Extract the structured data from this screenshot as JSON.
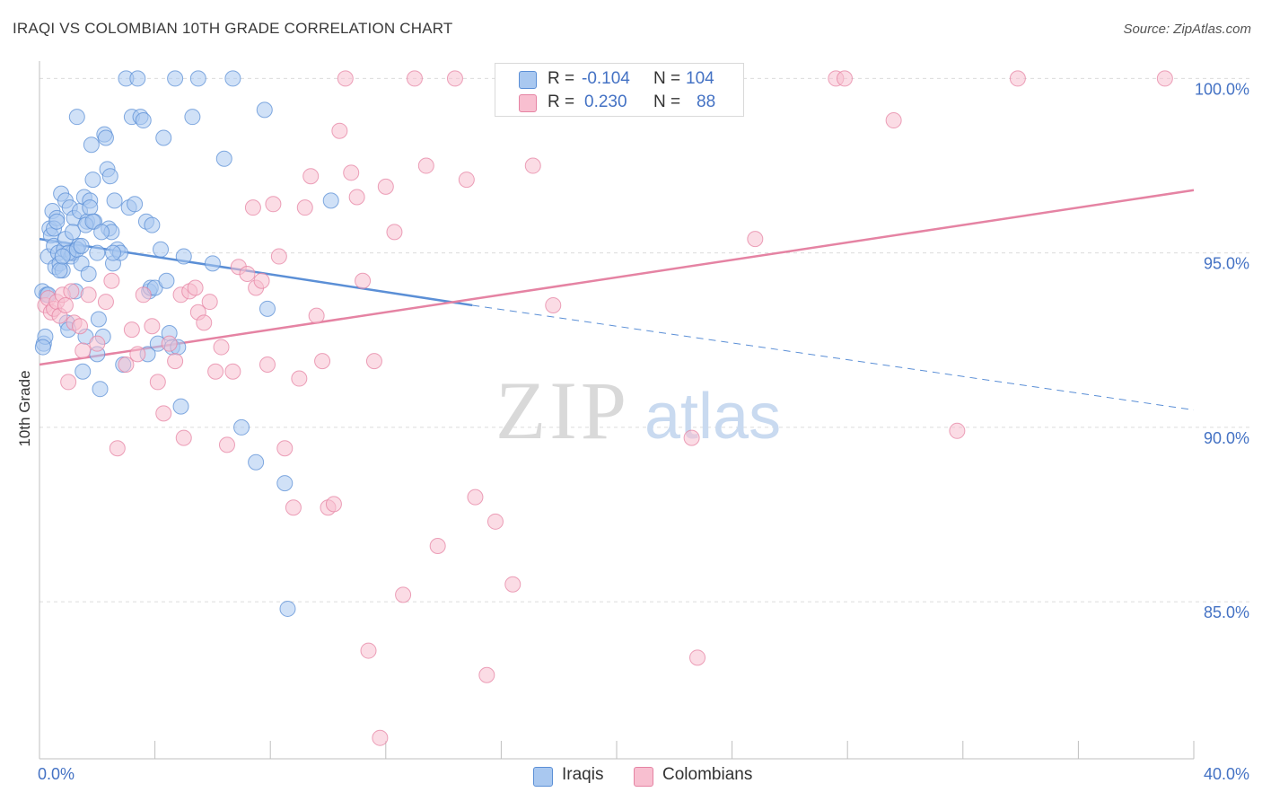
{
  "title": "IRAQI VS COLOMBIAN 10TH GRADE CORRELATION CHART",
  "source": "Source: ZipAtlas.com",
  "watermark": {
    "zip": "ZIP",
    "atlas": "atlas"
  },
  "legend": {
    "rows": [
      {
        "r_label": "R =",
        "r_value": "-0.104",
        "n_label": "N =",
        "n_value": "104",
        "color": "#a9c8f0",
        "border": "#5b8fd6"
      },
      {
        "r_label": "R =",
        "r_value": "0.230",
        "n_label": "N =",
        "n_value": "88",
        "color": "#f8bfd0",
        "border": "#e583a3"
      }
    ]
  },
  "bottom_legend": [
    {
      "label": "Iraqis",
      "color": "#a9c8f0",
      "border": "#5b8fd6"
    },
    {
      "label": "Colombians",
      "color": "#f8bfd0",
      "border": "#e583a3"
    }
  ],
  "chart_data": {
    "type": "scatter",
    "title": "IRAQI VS COLOMBIAN 10TH GRADE CORRELATION CHART",
    "ylabel": "10th Grade",
    "xlabel": "",
    "xlim": [
      0,
      40
    ],
    "ylim": [
      80.5,
      100.5
    ],
    "x_tick_labels": [
      "0.0%",
      "40.0%"
    ],
    "y_ticks": [
      100,
      95,
      90,
      85
    ],
    "y_tick_labels": [
      "100.0%",
      "95.0%",
      "90.0%",
      "85.0%"
    ],
    "grid": "horizontal dashed",
    "series": [
      {
        "name": "Iraqis",
        "color": "#5b8fd6",
        "fill": "#a9c8f0",
        "trend": {
          "x0": 0,
          "y0": 95.4,
          "x1": 15,
          "y1": 93.5,
          "dashed_to_x": 40,
          "dashed_to_y": 90.5
        },
        "points": [
          [
            0.1,
            93.9
          ],
          [
            0.15,
            92.4
          ],
          [
            0.2,
            92.6
          ],
          [
            0.25,
            93.8
          ],
          [
            0.3,
            94.9
          ],
          [
            0.35,
            95.7
          ],
          [
            0.4,
            95.5
          ],
          [
            0.45,
            96.2
          ],
          [
            0.5,
            95.2
          ],
          [
            0.55,
            94.6
          ],
          [
            0.6,
            96.0
          ],
          [
            0.65,
            95.0
          ],
          [
            0.7,
            94.7
          ],
          [
            0.75,
            96.7
          ],
          [
            0.8,
            94.5
          ],
          [
            0.85,
            95.1
          ],
          [
            0.9,
            96.5
          ],
          [
            0.95,
            93.0
          ],
          [
            1.0,
            92.8
          ],
          [
            1.05,
            96.3
          ],
          [
            1.1,
            94.9
          ],
          [
            1.15,
            95.0
          ],
          [
            1.2,
            96.0
          ],
          [
            1.25,
            93.9
          ],
          [
            1.3,
            98.9
          ],
          [
            1.35,
            95.2
          ],
          [
            1.4,
            96.2
          ],
          [
            1.45,
            94.7
          ],
          [
            1.5,
            91.6
          ],
          [
            1.55,
            96.6
          ],
          [
            1.6,
            92.6
          ],
          [
            1.65,
            95.9
          ],
          [
            1.7,
            94.4
          ],
          [
            1.75,
            96.5
          ],
          [
            1.8,
            98.1
          ],
          [
            1.85,
            97.1
          ],
          [
            1.9,
            95.9
          ],
          [
            2.0,
            92.1
          ],
          [
            2.05,
            93.1
          ],
          [
            2.1,
            91.1
          ],
          [
            2.2,
            92.6
          ],
          [
            2.25,
            98.4
          ],
          [
            2.3,
            98.3
          ],
          [
            2.35,
            97.4
          ],
          [
            2.4,
            95.7
          ],
          [
            2.45,
            97.2
          ],
          [
            2.5,
            95.6
          ],
          [
            2.55,
            94.7
          ],
          [
            2.6,
            96.5
          ],
          [
            2.7,
            95.1
          ],
          [
            2.8,
            95.0
          ],
          [
            2.9,
            91.8
          ],
          [
            3.0,
            100.0
          ],
          [
            3.1,
            96.3
          ],
          [
            3.2,
            98.9
          ],
          [
            3.3,
            96.4
          ],
          [
            3.4,
            100.0
          ],
          [
            3.5,
            98.9
          ],
          [
            3.6,
            98.8
          ],
          [
            3.7,
            95.9
          ],
          [
            3.75,
            92.1
          ],
          [
            3.8,
            93.9
          ],
          [
            3.85,
            94.0
          ],
          [
            3.9,
            95.8
          ],
          [
            4.0,
            94.0
          ],
          [
            4.1,
            92.4
          ],
          [
            4.2,
            95.1
          ],
          [
            4.3,
            98.3
          ],
          [
            4.4,
            94.2
          ],
          [
            4.5,
            92.7
          ],
          [
            4.6,
            92.3
          ],
          [
            4.7,
            100.0
          ],
          [
            4.8,
            92.3
          ],
          [
            4.9,
            90.6
          ],
          [
            5.0,
            94.9
          ],
          [
            5.3,
            98.9
          ],
          [
            5.5,
            100.0
          ],
          [
            6.0,
            94.7
          ],
          [
            6.4,
            97.7
          ],
          [
            6.7,
            100.0
          ],
          [
            7.0,
            90.0
          ],
          [
            7.5,
            89.0
          ],
          [
            7.8,
            99.1
          ],
          [
            7.9,
            93.4
          ],
          [
            8.5,
            88.4
          ],
          [
            8.6,
            84.8
          ],
          [
            10.1,
            96.5
          ],
          [
            0.12,
            92.3
          ],
          [
            0.3,
            93.8
          ],
          [
            0.5,
            95.7
          ],
          [
            0.7,
            94.5
          ],
          [
            0.9,
            95.4
          ],
          [
            1.0,
            95.0
          ],
          [
            1.15,
            95.6
          ],
          [
            1.3,
            95.1
          ],
          [
            1.45,
            95.2
          ],
          [
            1.6,
            95.8
          ],
          [
            1.75,
            96.3
          ],
          [
            1.85,
            95.9
          ],
          [
            2.0,
            95.0
          ],
          [
            0.6,
            95.9
          ],
          [
            0.8,
            94.9
          ],
          [
            2.15,
            95.6
          ],
          [
            2.55,
            95.0
          ]
        ]
      },
      {
        "name": "Colombians",
        "color": "#e583a3",
        "fill": "#f8bfd0",
        "trend": {
          "x0": 0,
          "y0": 91.8,
          "x1": 40,
          "y1": 96.8
        },
        "points": [
          [
            0.2,
            93.5
          ],
          [
            0.3,
            93.7
          ],
          [
            0.4,
            93.3
          ],
          [
            0.5,
            93.4
          ],
          [
            0.6,
            93.6
          ],
          [
            0.7,
            93.2
          ],
          [
            0.8,
            93.8
          ],
          [
            0.9,
            93.5
          ],
          [
            1.0,
            91.3
          ],
          [
            1.1,
            93.9
          ],
          [
            1.2,
            93.0
          ],
          [
            1.4,
            92.9
          ],
          [
            1.5,
            92.2
          ],
          [
            1.7,
            93.8
          ],
          [
            2.0,
            92.4
          ],
          [
            2.3,
            93.6
          ],
          [
            2.5,
            94.2
          ],
          [
            2.7,
            89.4
          ],
          [
            3.0,
            91.8
          ],
          [
            3.2,
            92.8
          ],
          [
            3.4,
            92.1
          ],
          [
            3.6,
            93.8
          ],
          [
            3.9,
            92.9
          ],
          [
            4.1,
            91.3
          ],
          [
            4.3,
            90.4
          ],
          [
            4.5,
            92.4
          ],
          [
            4.7,
            91.9
          ],
          [
            4.9,
            93.8
          ],
          [
            5.0,
            89.7
          ],
          [
            5.2,
            93.9
          ],
          [
            5.4,
            94.0
          ],
          [
            5.5,
            93.3
          ],
          [
            5.7,
            93.0
          ],
          [
            5.9,
            93.6
          ],
          [
            6.1,
            91.6
          ],
          [
            6.3,
            92.3
          ],
          [
            6.5,
            89.5
          ],
          [
            6.7,
            91.6
          ],
          [
            6.9,
            94.6
          ],
          [
            7.2,
            94.4
          ],
          [
            7.4,
            96.3
          ],
          [
            7.5,
            94.0
          ],
          [
            7.7,
            94.2
          ],
          [
            7.9,
            91.8
          ],
          [
            8.1,
            96.4
          ],
          [
            8.3,
            94.9
          ],
          [
            8.5,
            89.4
          ],
          [
            8.8,
            87.7
          ],
          [
            9.0,
            91.4
          ],
          [
            9.2,
            96.3
          ],
          [
            9.4,
            97.2
          ],
          [
            9.6,
            93.2
          ],
          [
            9.8,
            91.9
          ],
          [
            10.0,
            87.7
          ],
          [
            10.2,
            87.8
          ],
          [
            10.4,
            98.5
          ],
          [
            10.6,
            100.0
          ],
          [
            10.8,
            97.3
          ],
          [
            11.0,
            96.6
          ],
          [
            11.2,
            94.2
          ],
          [
            11.4,
            83.6
          ],
          [
            11.6,
            91.9
          ],
          [
            11.8,
            81.1
          ],
          [
            12.0,
            96.9
          ],
          [
            12.3,
            95.6
          ],
          [
            12.6,
            85.2
          ],
          [
            13.0,
            100.0
          ],
          [
            13.4,
            97.5
          ],
          [
            13.8,
            86.6
          ],
          [
            14.4,
            100.0
          ],
          [
            14.8,
            97.1
          ],
          [
            15.1,
            88.0
          ],
          [
            15.5,
            82.9
          ],
          [
            15.8,
            87.3
          ],
          [
            16.1,
            100.0
          ],
          [
            16.4,
            85.5
          ],
          [
            17.1,
            97.5
          ],
          [
            17.8,
            93.5
          ],
          [
            18.5,
            100.0
          ],
          [
            22.6,
            89.7
          ],
          [
            22.8,
            83.4
          ],
          [
            24.8,
            95.4
          ],
          [
            27.6,
            100.0
          ],
          [
            27.9,
            100.0
          ],
          [
            29.6,
            98.8
          ],
          [
            31.8,
            89.9
          ],
          [
            33.9,
            100.0
          ],
          [
            39.0,
            100.0
          ]
        ]
      }
    ]
  }
}
